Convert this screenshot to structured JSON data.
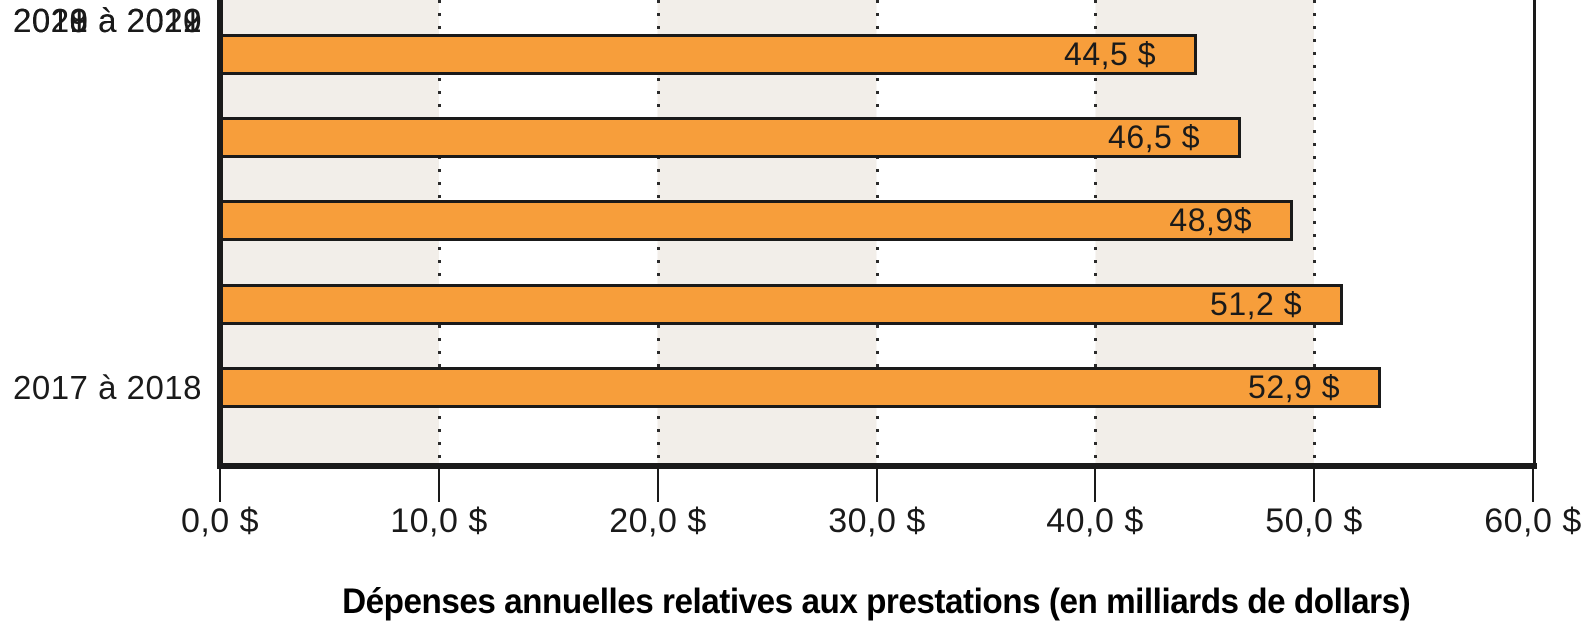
{
  "chart_data": {
    "type": "bar",
    "orientation": "horizontal",
    "title": "",
    "xlabel": "Dépenses annuelles relatives aux prestations (en milliards de dollars)",
    "ylabel": "",
    "categories": [
      "2017 à 2018",
      "2018 à 2019",
      "2019 à 2020",
      "2020 à 2021",
      "2021 à 2022"
    ],
    "values": [
      44.5,
      46.5,
      48.9,
      51.2,
      52.9
    ],
    "bar_labels": [
      "44,5 $",
      "46,5 $",
      "48,9$",
      "51,2 $",
      "52,9 $"
    ],
    "xlim": [
      0,
      60
    ],
    "x_ticks": [
      0,
      10,
      20,
      30,
      40,
      50,
      60
    ],
    "x_tick_labels": [
      "0,0 $",
      "10,0 $",
      "20,0 $",
      "30,0 $",
      "40,0 $",
      "50,0 $",
      "60,0 $"
    ],
    "grid": "vertical dotted gridlines at each x tick, drawn behind bars",
    "legend": "none",
    "background_bands": "alternating vertical bands every 10 units, beige then white",
    "colors": {
      "bar_fill": "#f79e3b",
      "bar_border": "#1a1a1a",
      "band_beige": "#f2eee9",
      "band_white": "#ffffff",
      "axis": "#1a1a1a",
      "text": "#1a1a1a"
    }
  }
}
